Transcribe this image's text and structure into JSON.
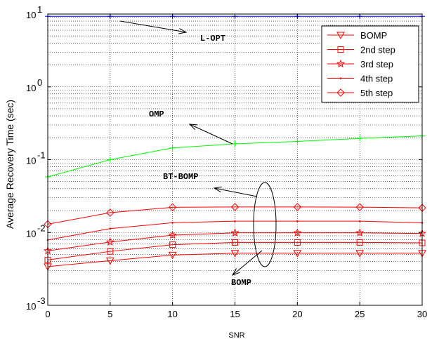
{
  "chart_data": {
    "type": "line",
    "xlabel": "SNR",
    "ylabel": "Average Recovery Time (sec)",
    "yscale": "log",
    "xlim": [
      0,
      30
    ],
    "ylim": [
      0.001,
      10
    ],
    "grid": true,
    "legend_position": "top-right",
    "x": [
      0,
      5,
      10,
      15,
      20,
      25,
      30
    ],
    "x_ticks": [
      "0",
      "5",
      "10",
      "15",
      "20",
      "25",
      "30"
    ],
    "y_ticks": [
      {
        "base": "10",
        "exp": "1",
        "value": 10
      },
      {
        "base": "10",
        "exp": "0",
        "value": 1
      },
      {
        "base": "10",
        "exp": "-1",
        "value": 0.1
      },
      {
        "base": "10",
        "exp": "-2",
        "value": 0.01
      },
      {
        "base": "10",
        "exp": "-3",
        "value": 0.001
      }
    ],
    "series": [
      {
        "key": "lopt",
        "color": "#0000ff",
        "marker": "plus",
        "values": [
          9.3,
          9.3,
          9.3,
          9.3,
          9.3,
          9.3,
          9.3
        ]
      },
      {
        "key": "omp",
        "color": "#00ff00",
        "marker": "plus",
        "values": [
          0.058,
          0.1,
          0.145,
          0.165,
          0.178,
          0.196,
          0.212
        ]
      },
      {
        "name": "BOMP",
        "color": "#ff0000",
        "marker": "triangle",
        "values": [
          0.0034,
          0.0041,
          0.0049,
          0.0052,
          0.0052,
          0.0052,
          0.0052
        ]
      },
      {
        "name": "2nd step",
        "color": "#ff0000",
        "marker": "square",
        "values": [
          0.0042,
          0.0055,
          0.0068,
          0.0073,
          0.0073,
          0.0073,
          0.0072
        ]
      },
      {
        "name": "3rd step",
        "color": "#ff0000",
        "marker": "star",
        "values": [
          0.0056,
          0.0074,
          0.0092,
          0.0099,
          0.0099,
          0.0099,
          0.0097
        ]
      },
      {
        "name": "4th step",
        "color": "#ff0000",
        "marker": "dot",
        "values": [
          0.0079,
          0.0113,
          0.0136,
          0.0143,
          0.0143,
          0.0143,
          0.0136
        ]
      },
      {
        "name": "5th step",
        "color": "#ff0000",
        "marker": "diamond",
        "values": [
          0.013,
          0.0187,
          0.0222,
          0.0224,
          0.0224,
          0.0223,
          0.0218
        ]
      }
    ],
    "annotations": [
      {
        "key": "lopt",
        "text": "L-OPT"
      },
      {
        "key": "omp",
        "text": "OMP"
      },
      {
        "key": "btbomp",
        "text": "BT-BOMP"
      },
      {
        "key": "bomp",
        "text": "BOMP"
      }
    ]
  }
}
